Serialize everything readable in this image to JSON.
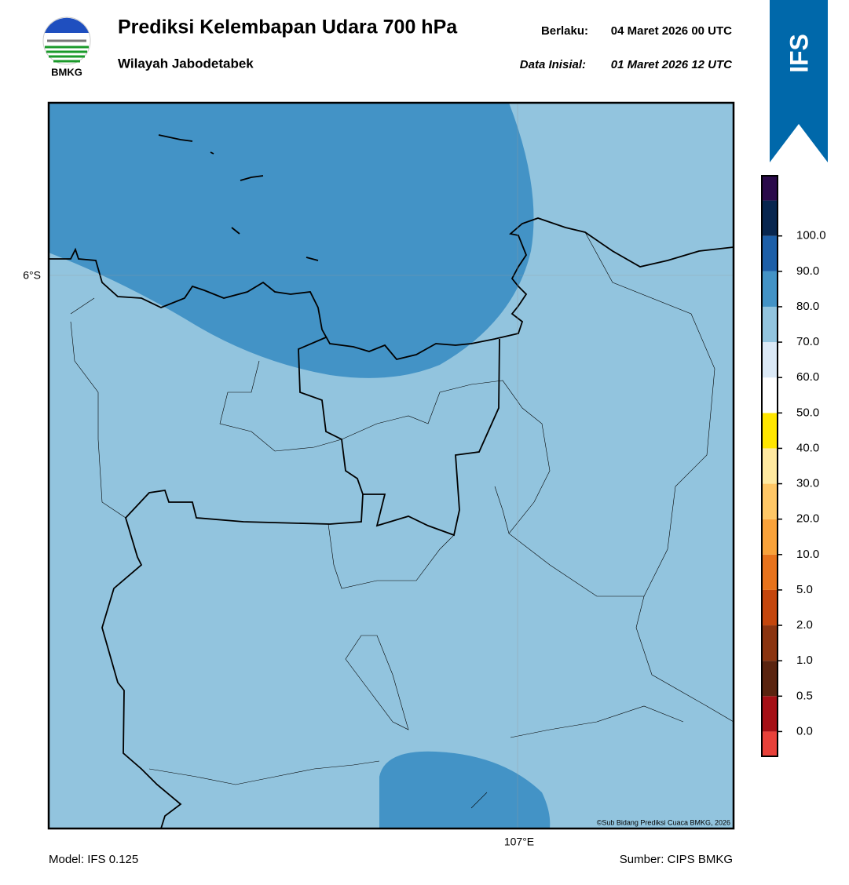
{
  "header": {
    "title": "Prediksi Kelembapan Udara 700 hPa",
    "subtitle": "Wilayah Jabodetabek",
    "logo": "BMKG",
    "badge": "IFS",
    "valid": {
      "label": "Berlaku:",
      "value": "04 Maret 2026 00 UTC"
    },
    "init": {
      "label": "Data Inisial:",
      "value": "01 Maret 2026 12 UTC"
    }
  },
  "map": {
    "lat_label": "6°S",
    "lon_label": "107°E",
    "credit": "©Sub Bidang Prediksi Cuaca BMKG, 2026"
  },
  "colorbar": {
    "colors": [
      "#e8413a",
      "#a50f15",
      "#5a2410",
      "#8b3410",
      "#c4460d",
      "#e8731c",
      "#f9a23a",
      "#ffc766",
      "#ffe9a0",
      "#ffe600",
      "#ffffff",
      "#dbe9f6",
      "#92c4de",
      "#4393c6",
      "#1d5fa8",
      "#08264f",
      "#2a0a4a"
    ],
    "labels": [
      "0.0",
      "0.5",
      "1.0",
      "2.0",
      "5.0",
      "10.0",
      "20.0",
      "30.0",
      "40.0",
      "50.0",
      "60.0",
      "70.0",
      "80.0",
      "90.0",
      "100.0"
    ]
  },
  "footer": {
    "model": "Model: IFS 0.125",
    "source": "Sumber: CIPS BMKG"
  }
}
